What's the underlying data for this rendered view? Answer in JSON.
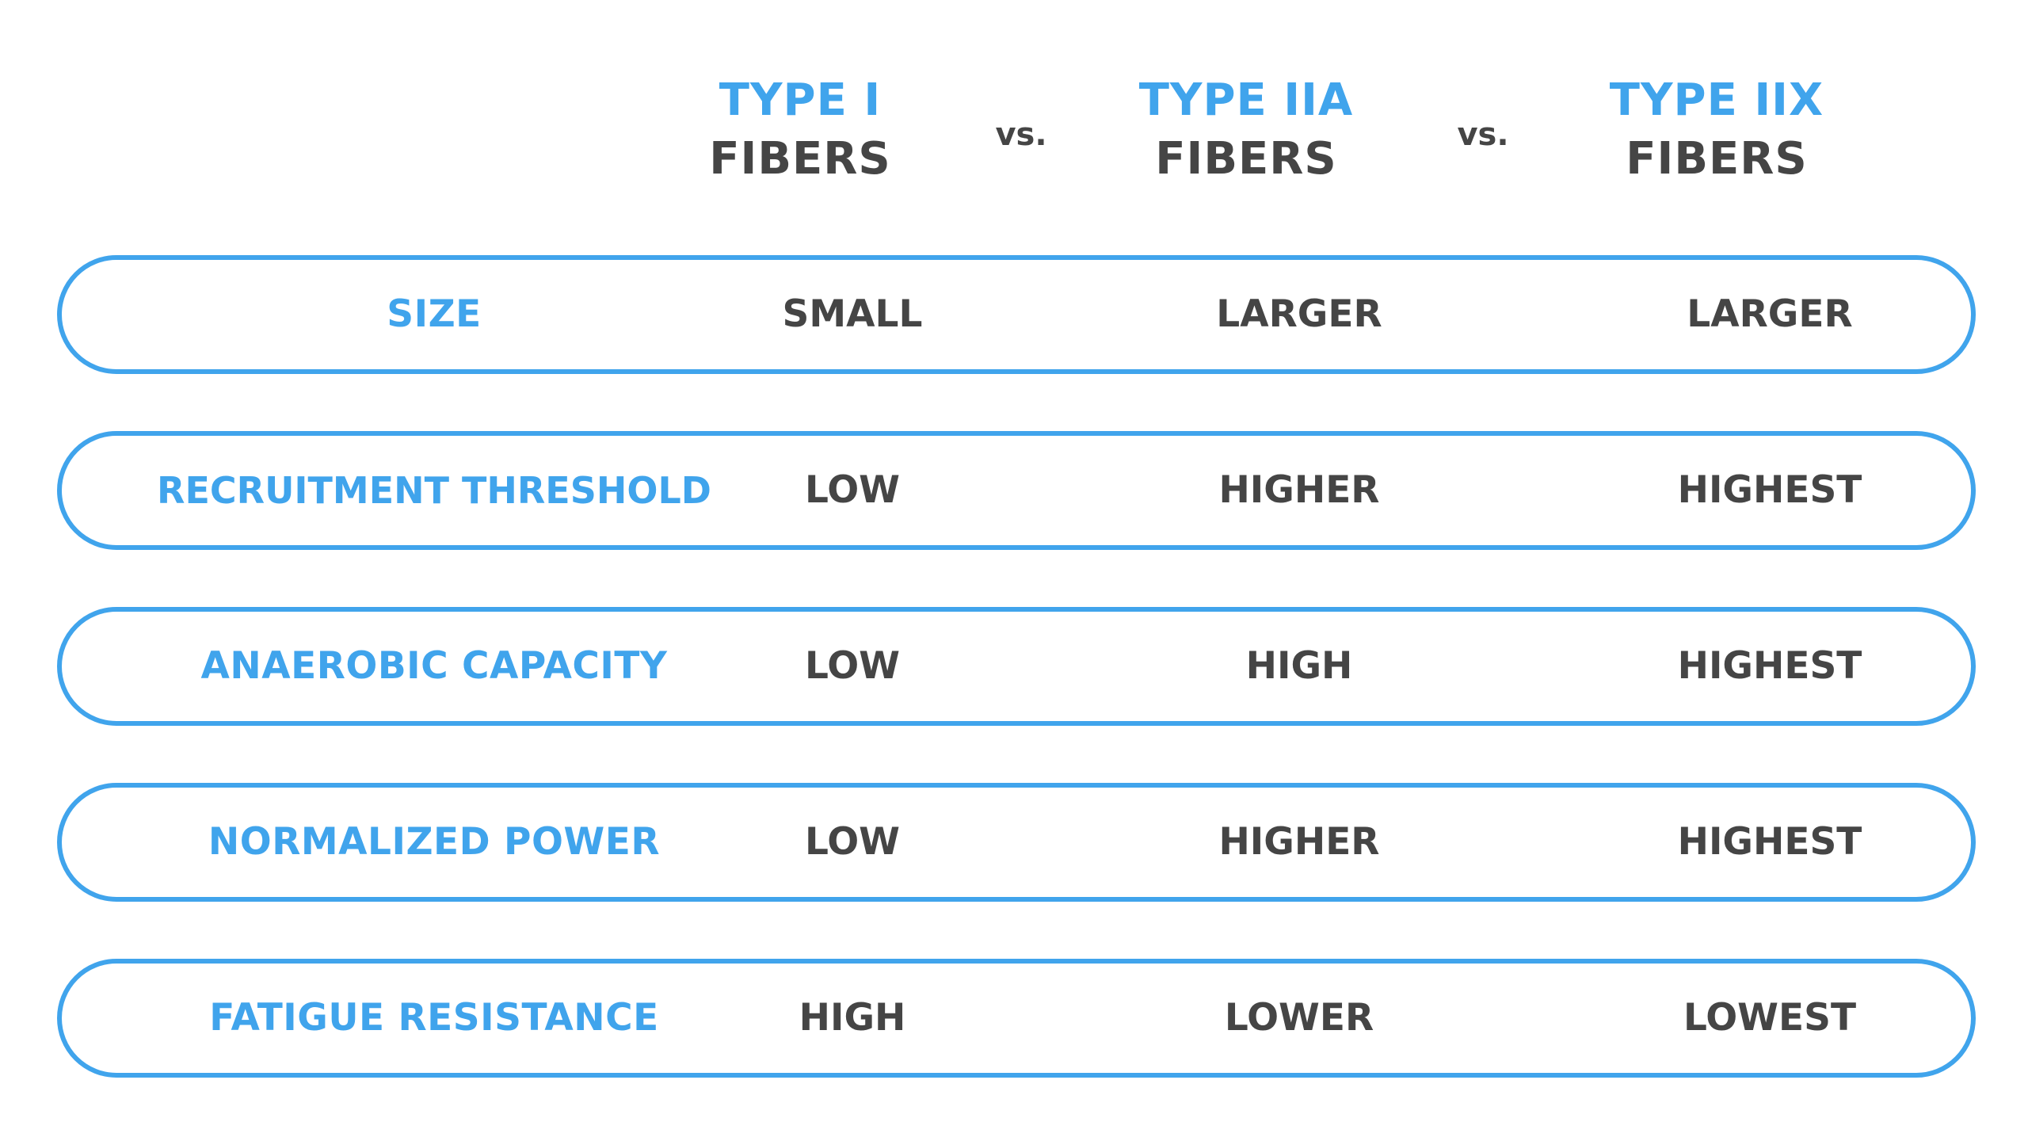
{
  "columns": [
    {
      "type": "TYPE I",
      "fibers": "FIBERS"
    },
    {
      "type": "TYPE IIA",
      "fibers": "FIBERS"
    },
    {
      "type": "TYPE IIX",
      "fibers": "FIBERS"
    }
  ],
  "separators": [
    "vs.",
    "vs."
  ],
  "rows": [
    {
      "label": "SIZE",
      "values": [
        "SMALL",
        "LARGER",
        "LARGER"
      ]
    },
    {
      "label": "RECRUITMENT THRESHOLD",
      "values": [
        "LOW",
        "HIGHER",
        "HIGHEST"
      ]
    },
    {
      "label": "ANAEROBIC CAPACITY",
      "values": [
        "LOW",
        "HIGH",
        "HIGHEST"
      ]
    },
    {
      "label": "NORMALIZED POWER",
      "values": [
        "LOW",
        "HIGHER",
        "HIGHEST"
      ]
    },
    {
      "label": "FATIGUE RESISTANCE",
      "values": [
        "HIGH",
        "LOWER",
        "LOWEST"
      ]
    }
  ],
  "colors": {
    "accent": "#40a4ec",
    "text": "#454545"
  }
}
